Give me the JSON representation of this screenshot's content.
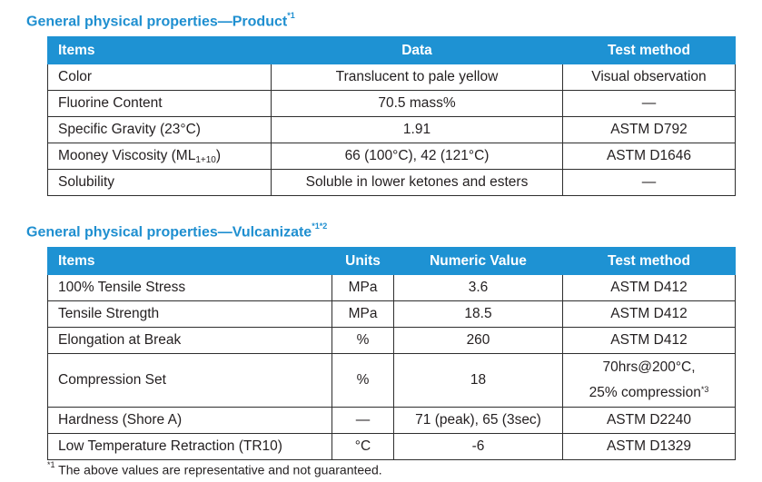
{
  "product": {
    "title": "General physical properties—Product",
    "title_note": "*1",
    "headers": [
      "Items",
      "Data",
      "Test method"
    ],
    "rows": [
      {
        "item": "Color",
        "data": "Translucent to pale yellow",
        "method": "Visual observation"
      },
      {
        "item": "Fluorine Content",
        "data": "70.5 mass%",
        "method": "—"
      },
      {
        "item": "Specific Gravity (23°C)",
        "data": "1.91",
        "method": "ASTM D792"
      },
      {
        "item_main": "Mooney Viscosity (ML",
        "item_sub": "1+10",
        "item_end": ")",
        "data": "66 (100°C), 42 (121°C)",
        "method": "ASTM D1646"
      },
      {
        "item": "Solubility",
        "data": "Soluble in lower ketones and esters",
        "method": "—"
      }
    ]
  },
  "vulcanizate": {
    "title": "General physical properties—Vulcanizate",
    "title_note": "*1*2",
    "headers": [
      "Items",
      "Units",
      "Numeric Value",
      "Test method"
    ],
    "rows": [
      {
        "item": "100% Tensile Stress",
        "units": "MPa",
        "value": "3.6",
        "method": "ASTM D412"
      },
      {
        "item": "Tensile Strength",
        "units": "MPa",
        "value": "18.5",
        "method": "ASTM D412"
      },
      {
        "item": "Elongation at Break",
        "units": "%",
        "value": "260",
        "method": "ASTM D412"
      },
      {
        "item": "Compression Set",
        "units": "%",
        "value": "18",
        "method_line1": "70hrs@200°C,",
        "method_line2": "25% compression",
        "method_note": "*3"
      },
      {
        "item": "Hardness (Shore A)",
        "units": "—",
        "value": "71 (peak), 65 (3sec)",
        "method": "ASTM D2240"
      },
      {
        "item": "Low Temperature Retraction (TR10)",
        "units": "°C",
        "value": "-6",
        "method": "ASTM D1329"
      }
    ]
  },
  "footnote": {
    "marker": "*1",
    "text": " The above values are representative and not guaranteed."
  }
}
